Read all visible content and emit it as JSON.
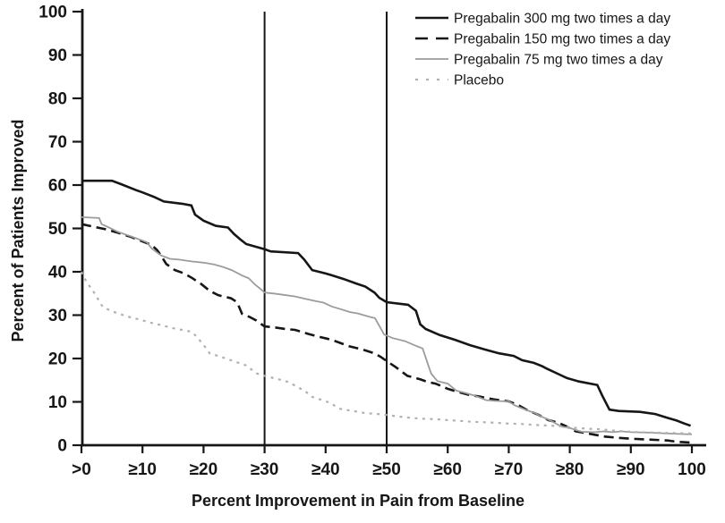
{
  "figure": {
    "background": "#ffffff",
    "text_color": "#161616"
  },
  "chart_data": {
    "type": "line",
    "title": "",
    "xlabel": "Percent Improvement in Pain from Baseline",
    "ylabel": "Percent of Patients Improved",
    "xlim": [
      0,
      100
    ],
    "ylim": [
      0,
      100
    ],
    "grid": false,
    "legend_position": "top-right",
    "x_tick_values": [
      0,
      10,
      20,
      30,
      40,
      50,
      60,
      70,
      80,
      90,
      100
    ],
    "x_tick_labels": [
      ">0",
      "≥10",
      "≥20",
      "≥30",
      "≥40",
      "≥50",
      "≥60",
      "≥70",
      "≥80",
      "≥90",
      "100"
    ],
    "y_tick_values": [
      0,
      10,
      20,
      30,
      40,
      50,
      60,
      70,
      80,
      90,
      100
    ],
    "reference_lines_x": [
      30,
      50
    ],
    "series": [
      {
        "name": "Pregabalin 300 mg two times a day",
        "slug": "pregabalin-300",
        "color": "#161616",
        "style": "solid",
        "width": 2.6,
        "points": [
          [
            0,
            61
          ],
          [
            5,
            61
          ],
          [
            6.5,
            60.2
          ],
          [
            9,
            58.8
          ],
          [
            10,
            58.3
          ],
          [
            12,
            57.2
          ],
          [
            13.5,
            56.2
          ],
          [
            16.5,
            55.7
          ],
          [
            18,
            55.3
          ],
          [
            18.6,
            53.2
          ],
          [
            20,
            51.8
          ],
          [
            22,
            50.6
          ],
          [
            24,
            50.2
          ],
          [
            25,
            48.7
          ],
          [
            26,
            47.5
          ],
          [
            27,
            46.4
          ],
          [
            28.5,
            45.8
          ],
          [
            30,
            45.2
          ],
          [
            31,
            44.7
          ],
          [
            35.5,
            44.3
          ],
          [
            36.5,
            42.8
          ],
          [
            37.8,
            40.4
          ],
          [
            40,
            39.6
          ],
          [
            41,
            39.2
          ],
          [
            43,
            38.3
          ],
          [
            45,
            37.3
          ],
          [
            46.5,
            36.6
          ],
          [
            48,
            35.2
          ],
          [
            48.8,
            34
          ],
          [
            50,
            33
          ],
          [
            53.5,
            32.4
          ],
          [
            54.8,
            31
          ],
          [
            55.5,
            27.9
          ],
          [
            56.4,
            26.8
          ],
          [
            58.7,
            25.4
          ],
          [
            61.2,
            24.3
          ],
          [
            63.6,
            23.1
          ],
          [
            66,
            22.1
          ],
          [
            68.4,
            21.2
          ],
          [
            70.8,
            20.6
          ],
          [
            72.2,
            19.6
          ],
          [
            74.1,
            19
          ],
          [
            75.5,
            18.2
          ],
          [
            76.3,
            17.6
          ],
          [
            78,
            16.5
          ],
          [
            79.5,
            15.5
          ],
          [
            81.5,
            14.7
          ],
          [
            84.5,
            13.9
          ],
          [
            85.3,
            11.5
          ],
          [
            86.5,
            8.2
          ],
          [
            88,
            7.9
          ],
          [
            91.5,
            7.7
          ],
          [
            94,
            7.2
          ],
          [
            96,
            6.3
          ],
          [
            97.5,
            5.7
          ],
          [
            98.8,
            5
          ],
          [
            99.8,
            4.5
          ]
        ]
      },
      {
        "name": "Pregabalin 150 mg two times a day",
        "slug": "pregabalin-150",
        "color": "#161616",
        "style": "dashed",
        "width": 2.6,
        "points": [
          [
            0,
            51
          ],
          [
            2,
            50.4
          ],
          [
            4,
            49.8
          ],
          [
            6,
            49
          ],
          [
            8,
            48.1
          ],
          [
            10,
            47
          ],
          [
            11.5,
            46.2
          ],
          [
            12.4,
            45
          ],
          [
            13,
            43.8
          ],
          [
            13.9,
            41.8
          ],
          [
            15.3,
            40.4
          ],
          [
            16.7,
            39.7
          ],
          [
            18.1,
            38.6
          ],
          [
            19.6,
            37.2
          ],
          [
            21,
            35.6
          ],
          [
            22.4,
            34.6
          ],
          [
            24.5,
            33.9
          ],
          [
            25.5,
            33
          ],
          [
            26.3,
            30.3
          ],
          [
            27.5,
            29.6
          ],
          [
            28.6,
            28.8
          ],
          [
            30,
            27.4
          ],
          [
            31.5,
            27.2
          ],
          [
            33.4,
            26.8
          ],
          [
            35,
            26.6
          ],
          [
            37.1,
            25.7
          ],
          [
            39,
            25
          ],
          [
            41,
            24.3
          ],
          [
            43.9,
            22.8
          ],
          [
            46,
            22.1
          ],
          [
            48,
            21.2
          ],
          [
            49,
            20.4
          ],
          [
            50,
            19.4
          ],
          [
            51.5,
            18
          ],
          [
            53.4,
            16
          ],
          [
            55.5,
            15.2
          ],
          [
            56.7,
            14.6
          ],
          [
            58,
            14.2
          ],
          [
            60,
            13
          ],
          [
            61.4,
            12.4
          ],
          [
            63.5,
            11.6
          ],
          [
            65.3,
            11.2
          ],
          [
            67.5,
            10.6
          ],
          [
            70,
            10.1
          ],
          [
            71.5,
            9.3
          ],
          [
            73,
            8.1
          ],
          [
            74.9,
            7
          ],
          [
            76.5,
            5.8
          ],
          [
            78.1,
            5.2
          ],
          [
            79.5,
            4.3
          ],
          [
            81,
            3.2
          ],
          [
            83,
            2.7
          ],
          [
            85.7,
            2
          ],
          [
            88,
            1.7
          ],
          [
            90,
            1.5
          ],
          [
            93,
            1.3
          ],
          [
            96,
            1.1
          ],
          [
            97.5,
            0.8
          ],
          [
            100,
            0.6
          ]
        ]
      },
      {
        "name": "Pregabalin 75 mg two times a day",
        "slug": "pregabalin-75",
        "color": "#9c9c9c",
        "style": "solid",
        "width": 1.8,
        "points": [
          [
            0,
            52.6
          ],
          [
            2.9,
            52.4
          ],
          [
            3.3,
            51
          ],
          [
            4.5,
            50.2
          ],
          [
            6,
            49.2
          ],
          [
            8,
            48.2
          ],
          [
            10,
            47.2
          ],
          [
            10.7,
            46.8
          ],
          [
            11.5,
            45.4
          ],
          [
            13,
            43.8
          ],
          [
            14.5,
            43
          ],
          [
            16,
            42.8
          ],
          [
            18,
            42.4
          ],
          [
            20,
            42.1
          ],
          [
            21.7,
            41.7
          ],
          [
            23,
            41.2
          ],
          [
            24.6,
            40.4
          ],
          [
            26.4,
            39.1
          ],
          [
            27.4,
            38.5
          ],
          [
            28.4,
            37.1
          ],
          [
            29.2,
            36.2
          ],
          [
            30,
            35.2
          ],
          [
            31.5,
            35
          ],
          [
            33,
            34.7
          ],
          [
            35,
            34.3
          ],
          [
            36.6,
            33.8
          ],
          [
            38.5,
            33.2
          ],
          [
            39.6,
            32.9
          ],
          [
            41,
            32
          ],
          [
            42.4,
            31.4
          ],
          [
            44,
            30.7
          ],
          [
            45.3,
            30.4
          ],
          [
            47,
            29.7
          ],
          [
            48.1,
            29.3
          ],
          [
            48.8,
            27.5
          ],
          [
            49.6,
            25.5
          ],
          [
            51,
            24.7
          ],
          [
            53,
            24
          ],
          [
            55,
            22.8
          ],
          [
            55.9,
            22.3
          ],
          [
            56.8,
            18.5
          ],
          [
            57.3,
            16.5
          ],
          [
            58.3,
            14.8
          ],
          [
            60,
            14.2
          ],
          [
            61.4,
            12.6
          ],
          [
            63,
            12
          ],
          [
            64.5,
            11.4
          ],
          [
            66.3,
            10.4
          ],
          [
            68,
            10.2
          ],
          [
            70,
            10.1
          ],
          [
            71,
            9.2
          ],
          [
            72.5,
            8.3
          ],
          [
            74.3,
            7.4
          ],
          [
            75.7,
            6.4
          ],
          [
            77.1,
            5.5
          ],
          [
            78.6,
            4.3
          ],
          [
            80,
            4
          ],
          [
            81,
            3.5
          ],
          [
            82,
            3.1
          ],
          [
            84,
            3
          ],
          [
            85.5,
            3.2
          ],
          [
            87,
            3
          ],
          [
            88.5,
            3.2
          ],
          [
            90,
            3
          ],
          [
            93,
            2.9
          ],
          [
            96,
            2.7
          ],
          [
            100,
            2.5
          ]
        ]
      },
      {
        "name": "Placebo",
        "slug": "placebo",
        "color": "#b0b0b0",
        "style": "dotted",
        "width": 2.2,
        "points": [
          [
            0,
            40
          ],
          [
            0.4,
            38.8
          ],
          [
            1,
            37.3
          ],
          [
            1.8,
            35.8
          ],
          [
            2.6,
            34
          ],
          [
            3.3,
            32.3
          ],
          [
            3.6,
            31.8
          ],
          [
            5,
            30.9
          ],
          [
            6,
            30.4
          ],
          [
            8,
            29.5
          ],
          [
            10,
            28.8
          ],
          [
            11.5,
            28.2
          ],
          [
            13.1,
            27.7
          ],
          [
            15,
            27
          ],
          [
            16.5,
            26.6
          ],
          [
            17.9,
            26.2
          ],
          [
            18.8,
            25.2
          ],
          [
            19.6,
            23.8
          ],
          [
            20.3,
            22.6
          ],
          [
            21,
            21.2
          ],
          [
            22.4,
            20.6
          ],
          [
            24.9,
            19.4
          ],
          [
            27,
            18.4
          ],
          [
            27.9,
            17.4
          ],
          [
            28.6,
            16.6
          ],
          [
            30,
            16
          ],
          [
            32,
            15.3
          ],
          [
            33.9,
            14.6
          ],
          [
            35.3,
            13.5
          ],
          [
            36.7,
            12.4
          ],
          [
            37.7,
            11.2
          ],
          [
            39,
            10.6
          ],
          [
            40.5,
            9.9
          ],
          [
            42.4,
            8.4
          ],
          [
            44.5,
            7.9
          ],
          [
            46.5,
            7.4
          ],
          [
            48.5,
            7.2
          ],
          [
            50,
            7
          ],
          [
            52,
            6.6
          ],
          [
            54,
            6.3
          ],
          [
            56,
            6.1
          ],
          [
            58.1,
            6
          ],
          [
            60,
            5.8
          ],
          [
            62,
            5.6
          ],
          [
            64,
            5.4
          ],
          [
            66,
            5.3
          ],
          [
            67.7,
            5.2
          ],
          [
            70,
            5
          ],
          [
            72,
            4.9
          ],
          [
            74,
            4.7
          ],
          [
            77.1,
            4.5
          ],
          [
            79,
            4.3
          ],
          [
            81,
            4
          ],
          [
            83,
            3.8
          ],
          [
            85,
            3.7
          ],
          [
            87,
            3.4
          ],
          [
            89,
            3.2
          ],
          [
            91,
            3
          ],
          [
            94,
            2.9
          ],
          [
            97,
            2.8
          ],
          [
            100,
            2.7
          ]
        ]
      }
    ]
  }
}
